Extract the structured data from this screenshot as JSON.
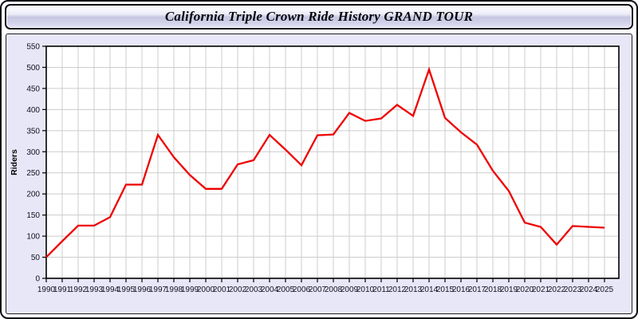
{
  "window": {
    "title": "California Triple Crown Ride History GRAND TOUR"
  },
  "chart_data": {
    "type": "line",
    "title": "California Triple Crown Ride History GRAND TOUR",
    "xlabel": "",
    "ylabel": "Riders",
    "x": [
      1990,
      1991,
      1992,
      1993,
      1994,
      1995,
      1996,
      1997,
      1998,
      1999,
      2000,
      2001,
      2002,
      2003,
      2004,
      2005,
      2006,
      2007,
      2008,
      2009,
      2010,
      2011,
      2012,
      2013,
      2014,
      2015,
      2016,
      2017,
      2018,
      2019,
      2020,
      2021,
      2022,
      2023,
      2024,
      2025
    ],
    "values": [
      50,
      88,
      125,
      125,
      145,
      222,
      222,
      340,
      287,
      245,
      212,
      212,
      270,
      280,
      340,
      305,
      268,
      339,
      341,
      392,
      373,
      379,
      411,
      385,
      495,
      380,
      346,
      317,
      255,
      207,
      132,
      122,
      80,
      124,
      122,
      120
    ],
    "ylim": [
      0,
      550
    ],
    "ytick_step": 50,
    "grid": true,
    "legend": "none",
    "colors": {
      "line": "#ee0000",
      "plot_bg": "#ffffff",
      "panel_bg": "#e7e7f7",
      "grid": "#cccccc",
      "axis": "#000000",
      "tick_text": "#111122"
    }
  }
}
